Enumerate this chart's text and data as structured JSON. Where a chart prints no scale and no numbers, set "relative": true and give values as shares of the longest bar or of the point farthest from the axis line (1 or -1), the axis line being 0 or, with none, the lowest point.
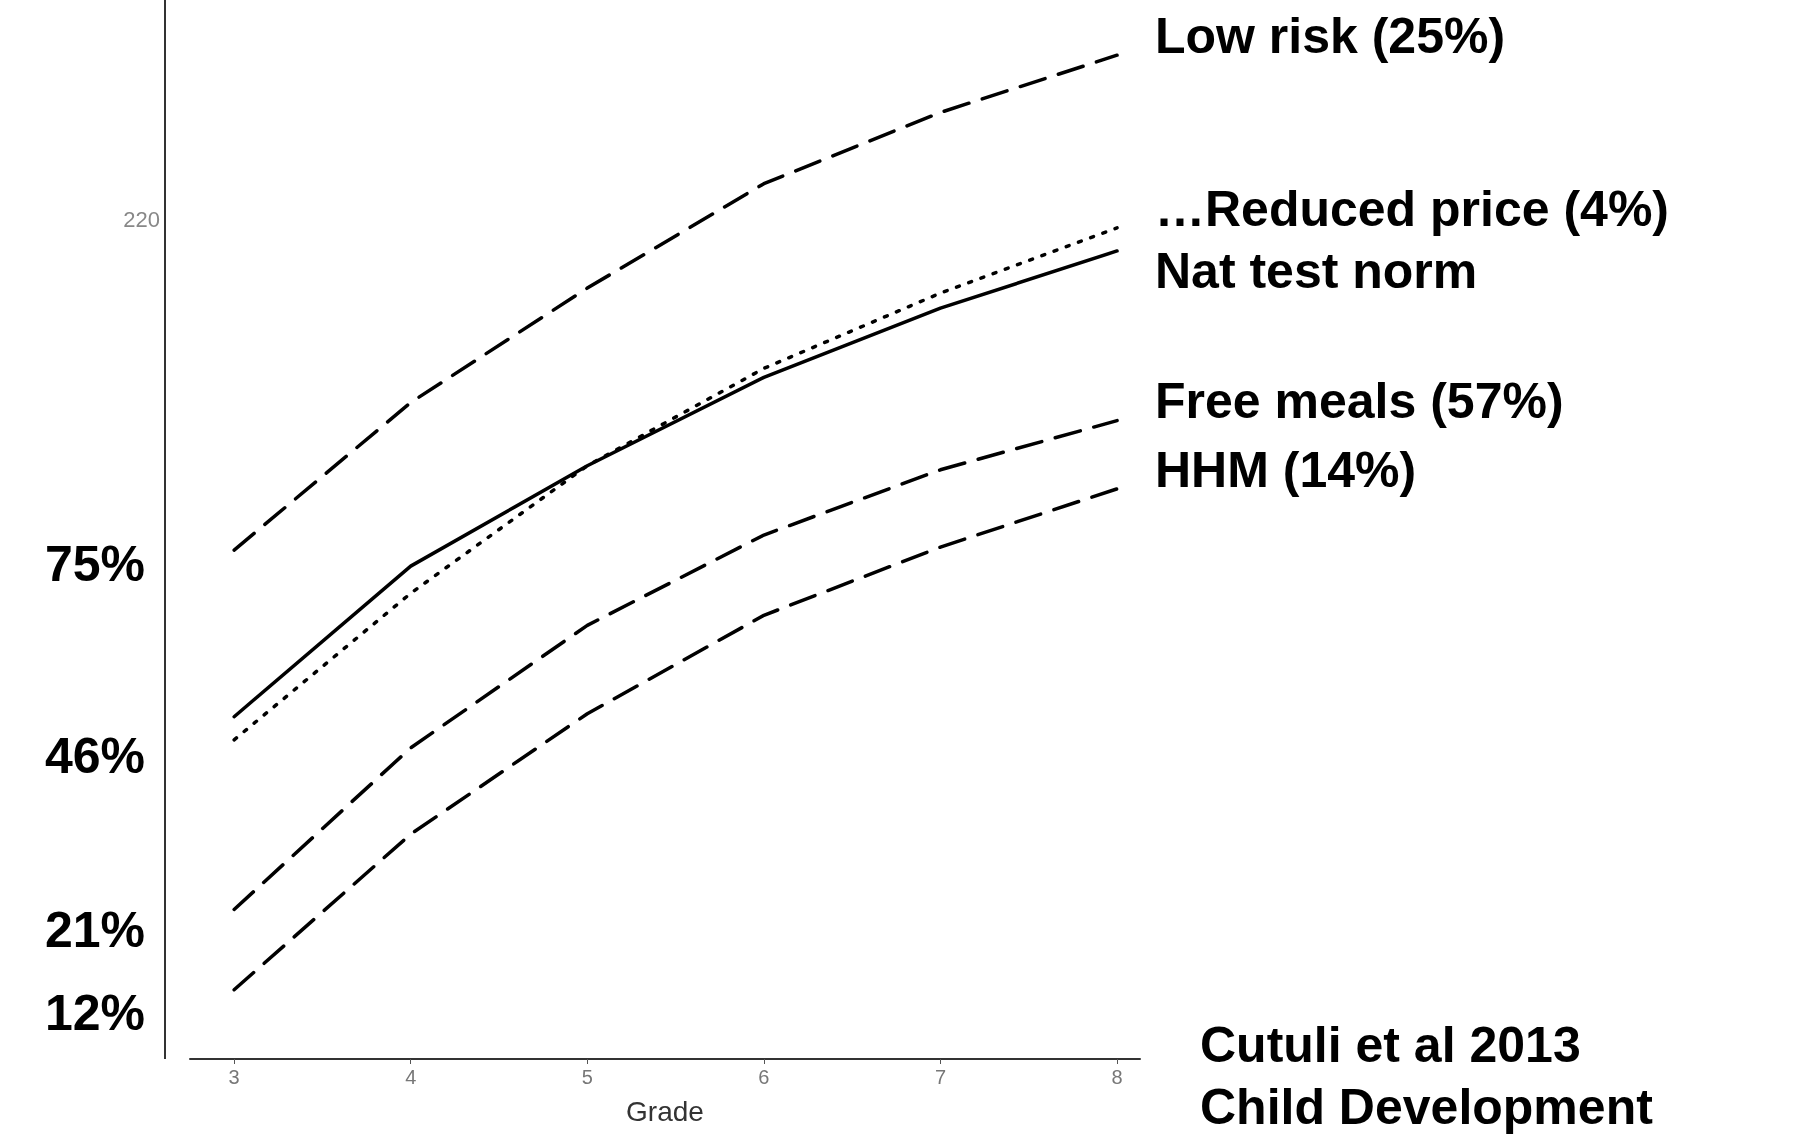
{
  "chart_data": {
    "type": "line",
    "relative": true,
    "xlabel": "Grade",
    "x": [
      3,
      4,
      5,
      6,
      7,
      8
    ],
    "xlim": [
      2.75,
      8.13
    ],
    "xticks": [
      3,
      4,
      5,
      6,
      7,
      8
    ],
    "grid": false,
    "legend": false,
    "marker": "none",
    "series": [
      {
        "name": "Low risk (25%)",
        "color": "#000000",
        "line_style": "dashed",
        "values": [
          0.507,
          0.654,
          0.768,
          0.872,
          0.943,
          1
        ]
      },
      {
        "name": "…Reduced price (4%)",
        "color": "#000000",
        "line_style": "dotted",
        "values": [
          0.318,
          0.464,
          0.591,
          0.688,
          0.763,
          0.828
        ]
      },
      {
        "name": "Nat test norm",
        "color": "#000000",
        "line_style": "solid",
        "values": [
          0.341,
          0.491,
          0.591,
          0.679,
          0.748,
          0.805
        ]
      },
      {
        "name": "Free meals (57%)",
        "color": "#000000",
        "line_style": "dashed",
        "values": [
          0.149,
          0.31,
          0.432,
          0.522,
          0.587,
          0.636
        ]
      },
      {
        "name": "HHM (14%)",
        "color": "#000000",
        "line_style": "dashed",
        "values": [
          0.069,
          0.224,
          0.344,
          0.442,
          0.51,
          0.568
        ]
      }
    ],
    "annotations": [
      "220",
      "75%",
      "46%",
      "21%",
      "12%",
      "Cutuli et al 2013",
      "Child Development"
    ]
  }
}
